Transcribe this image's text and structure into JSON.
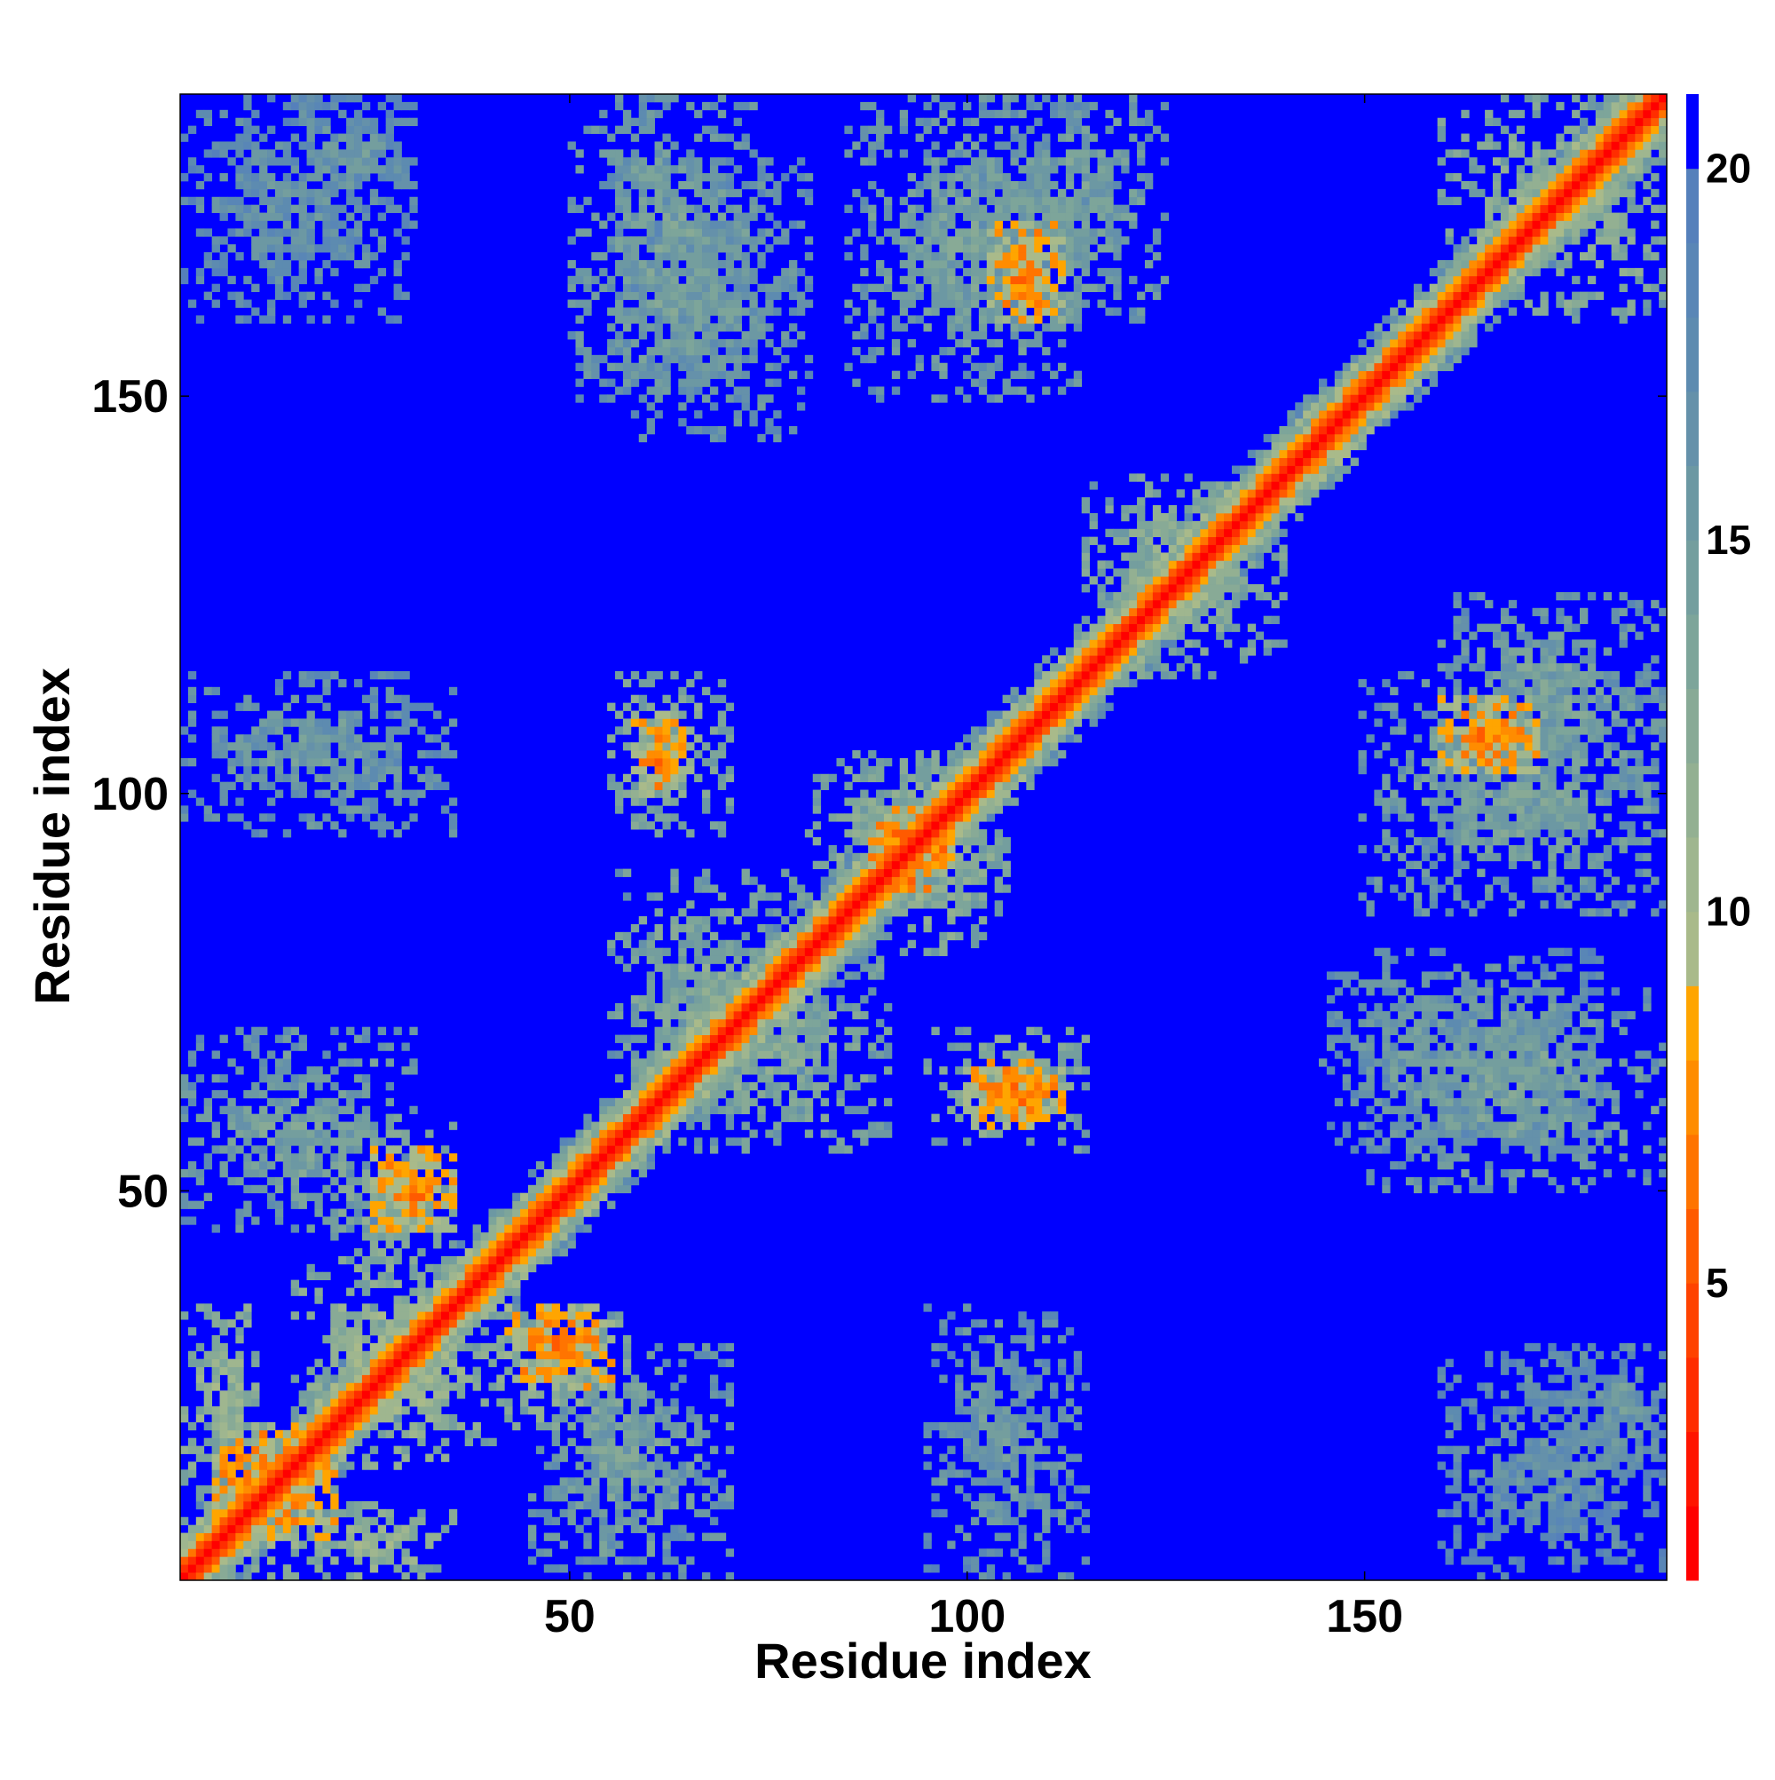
{
  "chart_data": {
    "type": "heatmap",
    "title": "",
    "xlabel": "Residue index",
    "ylabel": "Residue index",
    "xlim": [
      1,
      188
    ],
    "ylim": [
      1,
      188
    ],
    "x_ticks": [
      50,
      100,
      150
    ],
    "y_ticks": [
      50,
      100,
      150
    ],
    "n_residues": 188,
    "value_range": [
      1,
      21
    ],
    "colorbar": {
      "ticks": [
        5,
        10,
        15,
        20
      ],
      "bands": [
        {
          "from": 1,
          "to": 2,
          "color": "#ff0000"
        },
        {
          "from": 2,
          "to": 3,
          "color": "#ff1400"
        },
        {
          "from": 3,
          "to": 4,
          "color": "#ff2d00"
        },
        {
          "from": 4,
          "to": 5,
          "color": "#ff4200"
        },
        {
          "from": 5,
          "to": 6,
          "color": "#ff5a00"
        },
        {
          "from": 6,
          "to": 7,
          "color": "#ff7400"
        },
        {
          "from": 7,
          "to": 8,
          "color": "#ff8c00"
        },
        {
          "from": 8,
          "to": 9,
          "color": "#ffa500"
        },
        {
          "from": 9,
          "to": 10,
          "color": "#a9ba8a"
        },
        {
          "from": 10,
          "to": 11,
          "color": "#9fb68f"
        },
        {
          "from": 11,
          "to": 12,
          "color": "#93b092"
        },
        {
          "from": 12,
          "to": 13,
          "color": "#88aa96"
        },
        {
          "from": 13,
          "to": 14,
          "color": "#7da59a"
        },
        {
          "from": 14,
          "to": 15,
          "color": "#749e9e"
        },
        {
          "from": 15,
          "to": 16,
          "color": "#6c98a3"
        },
        {
          "from": 16,
          "to": 17,
          "color": "#6591aa"
        },
        {
          "from": 17,
          "to": 18,
          "color": "#5d8bb0"
        },
        {
          "from": 18,
          "to": 19,
          "color": "#5986b6"
        },
        {
          "from": 19,
          "to": 20,
          "color": "#5580bb"
        },
        {
          "from": 20,
          "to": 21,
          "color": "#0000ff"
        }
      ]
    },
    "diagonal_band": {
      "min_residue": 1,
      "max_residue": 188,
      "value_on_diagonal": 3.8
    },
    "contact_blocks": [
      {
        "x": [
          1,
          20
        ],
        "y": [
          1,
          20
        ],
        "value": 12
      },
      {
        "x": [
          5,
          20
        ],
        "y": [
          5,
          20
        ],
        "value": 7
      },
      {
        "x": [
          15,
          35
        ],
        "y": [
          1,
          10
        ],
        "value": 11
      },
      {
        "x": [
          1,
          10
        ],
        "y": [
          15,
          35
        ],
        "value": 11
      },
      {
        "x": [
          15,
          35
        ],
        "y": [
          20,
          40
        ],
        "value": 11
      },
      {
        "x": [
          20,
          40
        ],
        "y": [
          15,
          35
        ],
        "value": 11
      },
      {
        "x": [
          38,
          58
        ],
        "y": [
          20,
          35
        ],
        "value": 12
      },
      {
        "x": [
          20,
          35
        ],
        "y": [
          38,
          58
        ],
        "value": 12
      },
      {
        "x": [
          25,
          35
        ],
        "y": [
          45,
          55
        ],
        "value": 7
      },
      {
        "x": [
          42,
          55
        ],
        "y": [
          25,
          35
        ],
        "value": 7
      },
      {
        "x": [
          1,
          30
        ],
        "y": [
          45,
          70
        ],
        "value": 14
      },
      {
        "x": [
          45,
          70
        ],
        "y": [
          1,
          30
        ],
        "value": 14
      },
      {
        "x": [
          55,
          80
        ],
        "y": [
          60,
          90
        ],
        "value": 13
      },
      {
        "x": [
          60,
          90
        ],
        "y": [
          55,
          80
        ],
        "value": 13
      },
      {
        "x": [
          55,
          70
        ],
        "y": [
          95,
          115
        ],
        "value": 12
      },
      {
        "x": [
          58,
          64
        ],
        "y": [
          100,
          110
        ],
        "value": 7
      },
      {
        "x": [
          95,
          115
        ],
        "y": [
          55,
          70
        ],
        "value": 12
      },
      {
        "x": [
          100,
          112
        ],
        "y": [
          58,
          66
        ],
        "value": 7
      },
      {
        "x": [
          80,
          105
        ],
        "y": [
          85,
          105
        ],
        "value": 12
      },
      {
        "x": [
          85,
          105
        ],
        "y": [
          80,
          105
        ],
        "value": 12
      },
      {
        "x": [
          88,
          98
        ],
        "y": [
          88,
          98
        ],
        "value": 6
      },
      {
        "x": [
          1,
          35
        ],
        "y": [
          95,
          115
        ],
        "value": 15
      },
      {
        "x": [
          95,
          115
        ],
        "y": [
          1,
          35
        ],
        "value": 15
      },
      {
        "x": [
          145,
          180
        ],
        "y": [
          55,
          80
        ],
        "value": 15
      },
      {
        "x": [
          55,
          80
        ],
        "y": [
          145,
          180
        ],
        "value": 15
      },
      {
        "x": [
          150,
          188
        ],
        "y": [
          85,
          115
        ],
        "value": 14
      },
      {
        "x": [
          85,
          115
        ],
        "y": [
          150,
          188
        ],
        "value": 14
      },
      {
        "x": [
          160,
          172
        ],
        "y": [
          103,
          112
        ],
        "value": 7
      },
      {
        "x": [
          103,
          112
        ],
        "y": [
          160,
          172
        ],
        "value": 7
      },
      {
        "x": [
          100,
          125
        ],
        "y": [
          160,
          188
        ],
        "value": 14
      },
      {
        "x": [
          160,
          188
        ],
        "y": [
          100,
          125
        ],
        "value": 14
      },
      {
        "x": [
          50,
          75
        ],
        "y": [
          150,
          188
        ],
        "value": 14
      },
      {
        "x": [
          150,
          188
        ],
        "y": [
          50,
          75
        ],
        "value": 14
      },
      {
        "x": [
          1,
          30
        ],
        "y": [
          160,
          188
        ],
        "value": 16
      },
      {
        "x": [
          160,
          188
        ],
        "y": [
          1,
          30
        ],
        "value": 16
      },
      {
        "x": [
          160,
          188
        ],
        "y": [
          160,
          188
        ],
        "value": 12
      },
      {
        "x": [
          115,
          140
        ],
        "y": [
          115,
          140
        ],
        "value": 12
      },
      {
        "x": [
          175,
          188
        ],
        "y": [
          15,
          30
        ],
        "value": 15
      },
      {
        "x": [
          15,
          30
        ],
        "y": [
          175,
          188
        ],
        "value": 15
      }
    ]
  }
}
